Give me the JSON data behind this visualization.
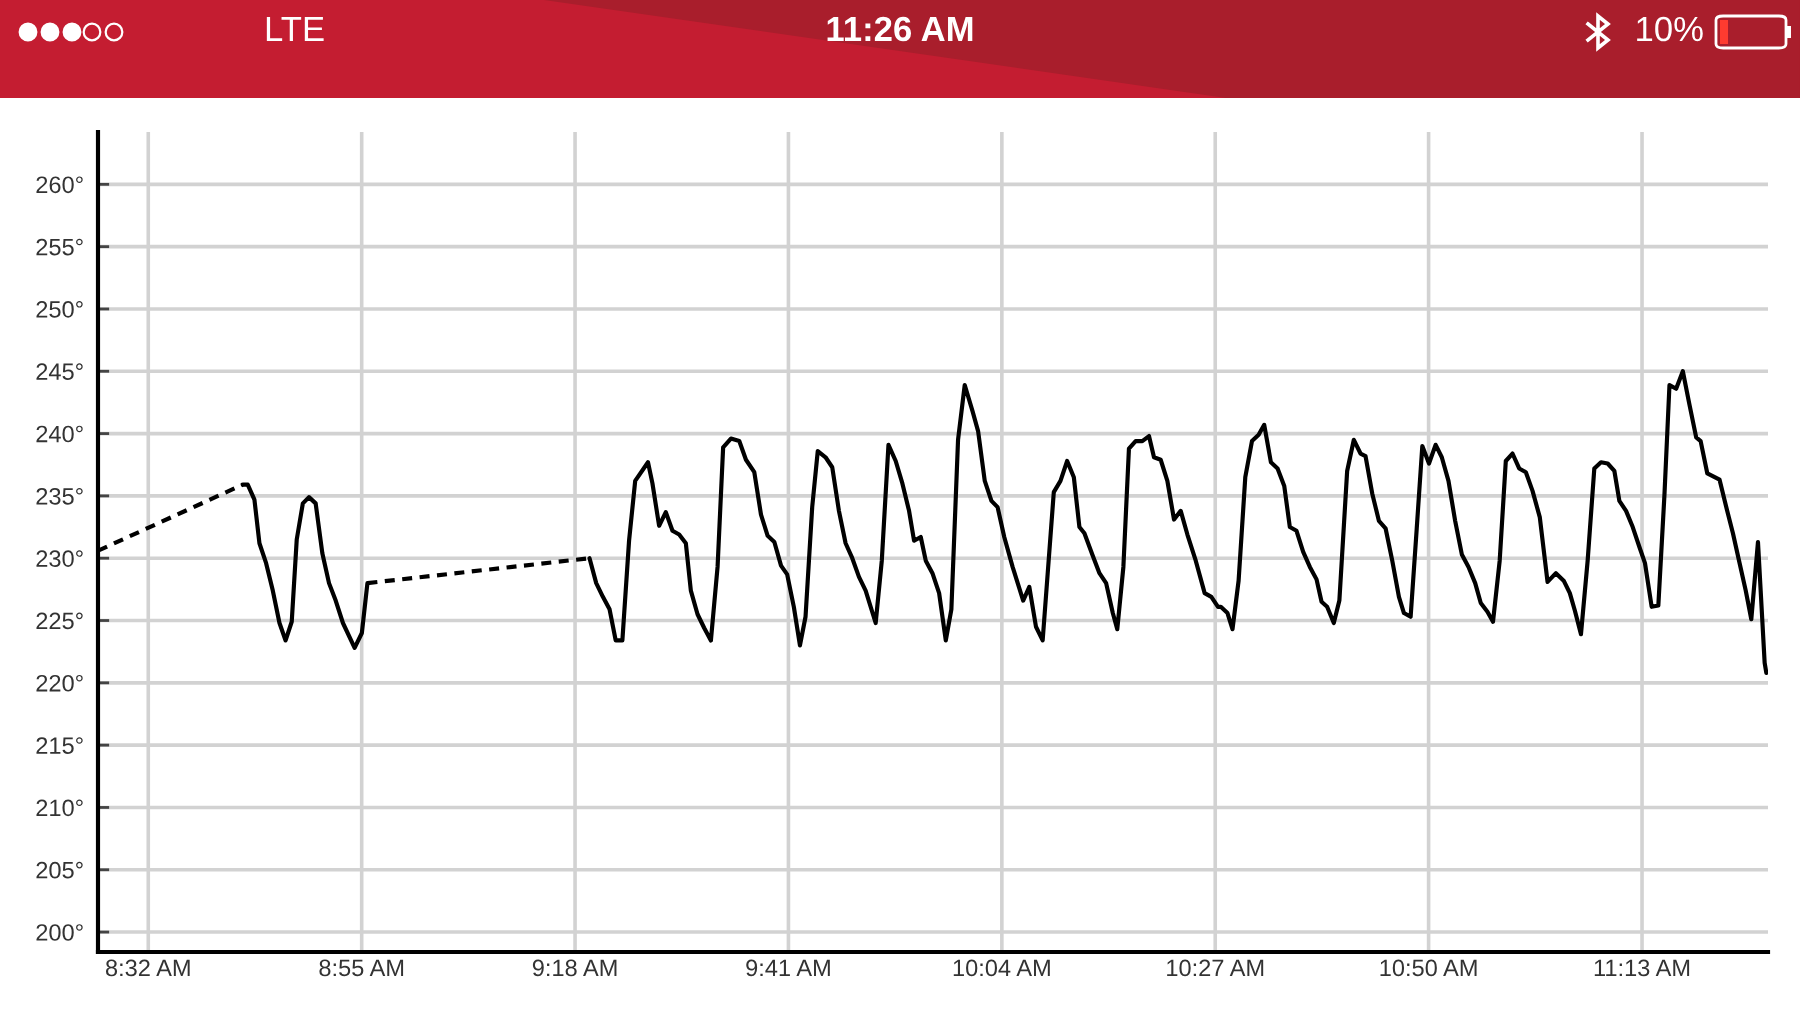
{
  "chart_data": {
    "type": "line",
    "annotations": [
      "LTE",
      "11:26 AM",
      "10%"
    ],
    "xlim": [
      8.443,
      11.443
    ],
    "xticks": [
      {
        "value": 8.5333,
        "label": "8:32 AM"
      },
      {
        "value": 8.9167,
        "label": "8:55 AM"
      },
      {
        "value": 9.3,
        "label": "9:18 AM"
      },
      {
        "value": 9.6833,
        "label": "9:41 AM"
      },
      {
        "value": 10.0667,
        "label": "10:04 AM"
      },
      {
        "value": 10.45,
        "label": "10:27 AM"
      },
      {
        "value": 10.8333,
        "label": "10:50 AM"
      },
      {
        "value": 11.2167,
        "label": "11:13 AM"
      }
    ],
    "ylim": [
      198.4,
      264.2
    ],
    "yticks": [
      {
        "value": 200,
        "label": "200°"
      },
      {
        "value": 205,
        "label": "205°"
      },
      {
        "value": 210,
        "label": "210°"
      },
      {
        "value": 215,
        "label": "215°"
      },
      {
        "value": 220,
        "label": "220°"
      },
      {
        "value": 225,
        "label": "225°"
      },
      {
        "value": 230,
        "label": "230°"
      },
      {
        "value": 235,
        "label": "235°"
      },
      {
        "value": 240,
        "label": "240°"
      },
      {
        "value": 245,
        "label": "245°"
      },
      {
        "value": 250,
        "label": "250°"
      },
      {
        "value": 255,
        "label": "255°"
      },
      {
        "value": 260,
        "label": "260°"
      }
    ],
    "grid": true,
    "series": [
      {
        "color": "#000000",
        "line_style": "dashed",
        "x": [
          8.443,
          8.703
        ],
        "values": [
          230.6,
          235.9
        ]
      },
      {
        "color": "#000000",
        "line_style": "solid",
        "x": [
          8.703,
          8.712,
          8.724,
          8.733,
          8.745,
          8.757,
          8.769,
          8.78,
          8.791,
          8.8,
          8.811,
          8.822,
          8.834,
          8.846,
          8.858,
          8.87,
          8.883,
          8.904,
          8.917,
          8.927
        ],
        "values": [
          235.9,
          235.9,
          234.7,
          231.2,
          229.6,
          227.4,
          224.8,
          223.4,
          224.9,
          231.5,
          234.4,
          234.9,
          234.4,
          230.4,
          228.0,
          226.6,
          224.8,
          222.8,
          224.0,
          228.0
        ]
      },
      {
        "color": "#000000",
        "line_style": "dashed",
        "x": [
          8.927,
          9.326
        ],
        "values": [
          228.0,
          230.0
        ]
      },
      {
        "color": "#000000",
        "line_style": "solid",
        "x": [
          9.326,
          9.338,
          9.35,
          9.362,
          9.373,
          9.385,
          9.397,
          9.408,
          9.431,
          9.439,
          9.451,
          9.463,
          9.475,
          9.487,
          9.499,
          9.508,
          9.52,
          9.532,
          9.544,
          9.556,
          9.566,
          9.58,
          9.595,
          9.607,
          9.622,
          9.634,
          9.646,
          9.658,
          9.67,
          9.681,
          9.693,
          9.704,
          9.714,
          9.726,
          9.736,
          9.75,
          9.762,
          9.774,
          9.786,
          9.798,
          9.81,
          9.822,
          9.84,
          9.851,
          9.863,
          9.876,
          9.888,
          9.9,
          9.909,
          9.921,
          9.93,
          9.942,
          9.954,
          9.966,
          9.976,
          9.988,
          10.0,
          10.014,
          10.024,
          10.036,
          10.048,
          10.059,
          10.071,
          10.086,
          10.098,
          10.105,
          10.116,
          10.128,
          10.14,
          10.16,
          10.172,
          10.184,
          10.196,
          10.206,
          10.215,
          10.23,
          10.242,
          10.254,
          10.266,
          10.274,
          10.285,
          10.295,
          10.307,
          10.319,
          10.331,
          10.34,
          10.352,
          10.364,
          10.376,
          10.388,
          10.4,
          10.415,
          10.431,
          10.443,
          10.455,
          10.46,
          10.472,
          10.481,
          10.492,
          10.504,
          10.516,
          10.528,
          10.538,
          10.55,
          10.562,
          10.574,
          10.584,
          10.596,
          10.608,
          10.62,
          10.632,
          10.641,
          10.651,
          10.663,
          10.673,
          10.687,
          10.699,
          10.711,
          10.72,
          10.732,
          10.744,
          10.756,
          10.768,
          10.78,
          10.789,
          10.801,
          10.812,
          10.822,
          10.834,
          10.846,
          10.857,
          10.869,
          10.881,
          10.893,
          10.905,
          10.917,
          10.927,
          10.939,
          10.949,
          10.961,
          10.972,
          10.984,
          10.996,
          11.008,
          11.02,
          11.033,
          11.047,
          11.062,
          11.076,
          11.087,
          11.096,
          11.107,
          11.119,
          11.131,
          11.143,
          11.155,
          11.167,
          11.176,
          11.188,
          11.2,
          11.212,
          11.222,
          11.234,
          11.246,
          11.257,
          11.266,
          11.278,
          11.29,
          11.302,
          11.314,
          11.322,
          11.334,
          11.356,
          11.368,
          11.38,
          11.392,
          11.403,
          11.413,
          11.425,
          11.437,
          11.44
        ],
        "values": [
          230.0,
          228.0,
          226.9,
          225.9,
          223.4,
          223.4,
          231.4,
          236.2,
          237.7,
          236.0,
          232.6,
          233.7,
          232.2,
          231.9,
          231.2,
          227.4,
          225.5,
          224.4,
          223.4,
          229.3,
          238.9,
          239.6,
          239.4,
          237.9,
          236.9,
          233.5,
          231.8,
          231.3,
          229.4,
          228.7,
          226.1,
          223.0,
          225.3,
          234.1,
          238.6,
          238.1,
          237.3,
          233.8,
          231.2,
          230.0,
          228.5,
          227.4,
          224.8,
          229.8,
          239.1,
          237.8,
          236.0,
          233.8,
          231.4,
          231.7,
          229.8,
          228.8,
          227.2,
          223.4,
          225.9,
          239.5,
          243.9,
          241.8,
          240.2,
          236.2,
          234.6,
          234.1,
          231.7,
          229.3,
          227.6,
          226.6,
          227.7,
          224.5,
          223.4,
          235.3,
          236.2,
          237.8,
          236.5,
          232.5,
          232.0,
          230.2,
          228.8,
          228.0,
          225.6,
          224.3,
          229.3,
          238.8,
          239.4,
          239.4,
          239.8,
          238.1,
          237.9,
          236.2,
          233.1,
          233.8,
          231.9,
          229.8,
          227.2,
          226.9,
          226.1,
          226.1,
          225.6,
          224.3,
          228.2,
          236.5,
          239.4,
          239.9,
          240.7,
          237.7,
          237.2,
          235.8,
          232.5,
          232.2,
          230.5,
          229.3,
          228.3,
          226.5,
          226.1,
          224.8,
          226.6,
          237.0,
          239.5,
          238.4,
          238.2,
          235.2,
          233.0,
          232.4,
          229.8,
          226.9,
          225.6,
          225.3,
          232.4,
          239.0,
          237.6,
          239.1,
          238.1,
          236.2,
          233.0,
          230.3,
          229.3,
          228.0,
          226.4,
          225.7,
          224.9,
          229.8,
          237.8,
          238.4,
          237.2,
          236.9,
          235.4,
          233.3,
          228.1,
          228.8,
          228.2,
          227.2,
          225.8,
          223.9,
          229.8,
          237.2,
          237.7,
          237.6,
          237.0,
          234.6,
          233.8,
          232.5,
          230.9,
          229.6,
          226.1,
          226.2,
          235.1,
          243.9,
          243.6,
          245.0,
          242.3,
          239.7,
          239.4,
          236.8,
          236.3,
          234.1,
          232.0,
          229.6,
          227.4,
          225.1,
          231.3,
          221.6,
          220.8
        ]
      }
    ]
  }
}
